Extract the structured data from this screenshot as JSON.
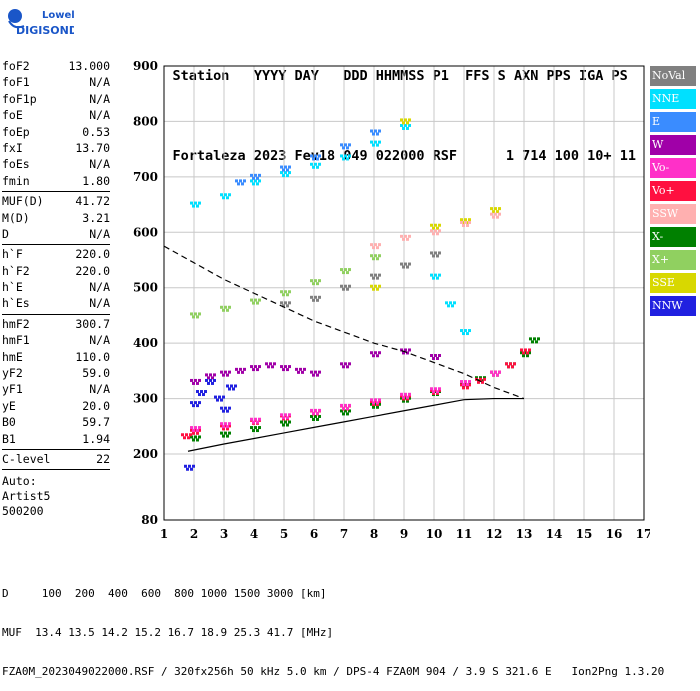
{
  "logo": {
    "line1": "Lowell",
    "line2": "DIGISONDE",
    "color": "#1a56c8"
  },
  "header": {
    "labels": [
      "Station",
      "YYYY DAY",
      "DDD HHMMSS P1",
      "FFS S",
      "AXN",
      "PPS",
      "IGA",
      "PS"
    ],
    "values": [
      "Fortaleza",
      "2023 Fev18",
      "049 022000 RSF",
      "1",
      "714",
      "100",
      "10+",
      "11"
    ]
  },
  "params": {
    "group1": [
      {
        "k": "foF2",
        "v": "13.000"
      },
      {
        "k": "foF1",
        "v": "N/A"
      },
      {
        "k": "foF1p",
        "v": "N/A"
      },
      {
        "k": "foE",
        "v": "N/A"
      },
      {
        "k": "foEp",
        "v": "0.53"
      },
      {
        "k": "fxI",
        "v": "13.70"
      },
      {
        "k": "foEs",
        "v": "N/A"
      },
      {
        "k": "fmin",
        "v": "1.80"
      }
    ],
    "group2": [
      {
        "k": "MUF(D)",
        "v": "41.72"
      },
      {
        "k": "M(D)",
        "v": "3.21"
      },
      {
        "k": "D",
        "v": "N/A"
      }
    ],
    "group3": [
      {
        "k": "h`F",
        "v": "220.0"
      },
      {
        "k": "h`F2",
        "v": "220.0"
      },
      {
        "k": "h`E",
        "v": "N/A"
      },
      {
        "k": "h`Es",
        "v": "N/A"
      }
    ],
    "group4": [
      {
        "k": "hmF2",
        "v": "300.7"
      },
      {
        "k": "hmF1",
        "v": "N/A"
      },
      {
        "k": "hmE",
        "v": "110.0"
      },
      {
        "k": "yF2",
        "v": "59.0"
      },
      {
        "k": "yF1",
        "v": "N/A"
      },
      {
        "k": "yE",
        "v": "20.0"
      },
      {
        "k": "B0",
        "v": "59.7"
      },
      {
        "k": "B1",
        "v": "1.94"
      }
    ],
    "group5": [
      {
        "k": "C-level",
        "v": "22"
      }
    ],
    "auto": [
      "Auto:",
      "Artist5",
      "500200"
    ]
  },
  "legend": [
    {
      "label": "NoVal",
      "color": "#808080"
    },
    {
      "label": "NNE",
      "color": "#00e0ff"
    },
    {
      "label": "E",
      "color": "#3a8cff"
    },
    {
      "label": "W",
      "color": "#a000a8"
    },
    {
      "label": "Vo-",
      "color": "#ff30c8"
    },
    {
      "label": "Vo+",
      "color": "#ff1040"
    },
    {
      "label": "SSW",
      "color": "#ffb0b0"
    },
    {
      "label": "X-",
      "color": "#008000"
    },
    {
      "label": "X+",
      "color": "#90d060"
    },
    {
      "label": "SSE",
      "color": "#d8d800"
    },
    {
      "label": "NNW",
      "color": "#2020e0"
    }
  ],
  "footer": {
    "line1": "D     100  200  400  600  800 1000 1500 3000 [km]",
    "line2": "MUF  13.4 13.5 14.2 15.2 16.7 18.9 25.3 41.7 [MHz]",
    "line3": "FZA0M_2023049022000.RSF / 320fx256h 50 kHz 5.0 km / DPS-4 FZA0M 904 / 3.9 S 321.6 E   Ion2Png 1.3.20"
  },
  "chart_data": {
    "type": "scatter",
    "title": "",
    "xlabel": "",
    "ylabel": "",
    "xlim": [
      1,
      17
    ],
    "ylim": [
      80,
      900
    ],
    "x_ticks": [
      "1",
      "2",
      "3",
      "4",
      "5",
      "6",
      "7",
      "8",
      "9",
      "10",
      "11",
      "12",
      "13",
      "14",
      "15",
      "16",
      "17"
    ],
    "y_ticks": [
      "80",
      "200",
      "300",
      "400",
      "500",
      "600",
      "700",
      "800",
      "900"
    ],
    "grid": true,
    "series": [
      {
        "name": "X-",
        "color": "#008000",
        "x": [
          2.0,
          3.0,
          4.0,
          5.0,
          6.0,
          7.0,
          8.0,
          9.0,
          10.0,
          11.0,
          11.5,
          12.0,
          12.5,
          13.0,
          13.3
        ],
        "y": [
          228,
          235,
          245,
          255,
          265,
          275,
          287,
          298,
          310,
          325,
          335,
          345,
          360,
          380,
          405
        ]
      },
      {
        "name": "Vo+",
        "color": "#ff1040",
        "x": [
          1.7,
          2.0,
          3.0,
          4.0,
          5.0,
          6.0,
          7.0,
          8.0,
          9.0,
          10.0,
          11.0,
          11.5,
          12.0,
          12.5,
          13.0
        ],
        "y": [
          232,
          240,
          248,
          258,
          266,
          275,
          284,
          292,
          302,
          312,
          322,
          332,
          345,
          360,
          385
        ]
      },
      {
        "name": "Vo-",
        "color": "#ff30c8",
        "x": [
          2.0,
          3.0,
          4.0,
          5.0,
          6.0,
          7.0,
          8.0,
          9.0,
          10.0,
          11.0,
          12.0
        ],
        "y": [
          245,
          252,
          260,
          268,
          276,
          285,
          295,
          305,
          315,
          328,
          345
        ]
      },
      {
        "name": "W",
        "color": "#a000a8",
        "x": [
          2.0,
          2.5,
          3.0,
          3.5,
          4.0,
          4.5,
          5.0,
          5.5,
          6.0,
          7.0,
          8.0,
          9.0,
          10.0
        ],
        "y": [
          330,
          340,
          345,
          350,
          355,
          360,
          355,
          350,
          345,
          360,
          380,
          385,
          375
        ]
      },
      {
        "name": "NNW",
        "color": "#2020e0",
        "x": [
          2.0,
          2.2,
          2.5,
          2.8,
          3.0,
          3.2,
          1.8
        ],
        "y": [
          290,
          310,
          330,
          300,
          280,
          320,
          175
        ]
      },
      {
        "name": "NNE",
        "color": "#00e0ff",
        "x": [
          2.0,
          3.0,
          4.0,
          5.0,
          6.0,
          7.0,
          8.0,
          9.0,
          10.0,
          10.5,
          11.0
        ],
        "y": [
          650,
          665,
          690,
          705,
          720,
          735,
          760,
          790,
          520,
          470,
          420
        ]
      },
      {
        "name": "E",
        "color": "#3a8cff",
        "x": [
          3.5,
          4.0,
          5.0,
          6.0,
          7.0,
          8.0
        ],
        "y": [
          690,
          700,
          715,
          735,
          755,
          780
        ]
      },
      {
        "name": "X+",
        "color": "#90d060",
        "x": [
          2.0,
          3.0,
          4.0,
          5.0,
          6.0,
          7.0,
          8.0
        ],
        "y": [
          450,
          462,
          475,
          490,
          510,
          530,
          555
        ]
      },
      {
        "name": "SSE",
        "color": "#d8d800",
        "x": [
          8.0,
          9.0,
          10.0,
          11.0,
          12.0
        ],
        "y": [
          500,
          800,
          610,
          620,
          640
        ]
      },
      {
        "name": "SSW",
        "color": "#ffb0b0",
        "x": [
          8.0,
          9.0,
          10.0,
          11.0,
          12.0
        ],
        "y": [
          575,
          590,
          600,
          615,
          630
        ]
      },
      {
        "name": "NoVal",
        "color": "#808080",
        "x": [
          5.0,
          6.0,
          7.0,
          8.0,
          9.0,
          10.0
        ],
        "y": [
          470,
          480,
          500,
          520,
          540,
          560
        ]
      }
    ],
    "profile_curve": {
      "x": [
        1.8,
        3.0,
        4.0,
        5.0,
        6.0,
        7.0,
        8.0,
        9.0,
        10.0,
        11.0,
        12.0,
        12.6,
        13.0
      ],
      "y": [
        205,
        218,
        228,
        238,
        248,
        258,
        268,
        278,
        288,
        298,
        300,
        300,
        300
      ]
    },
    "dashed_curve": {
      "x": [
        1.0,
        2.0,
        3.0,
        4.0,
        5.0,
        6.0,
        7.0,
        8.0,
        9.0,
        10.0,
        11.0,
        12.0,
        13.0
      ],
      "y": [
        575,
        545,
        515,
        490,
        465,
        440,
        420,
        400,
        385,
        365,
        345,
        320,
        300
      ]
    }
  }
}
